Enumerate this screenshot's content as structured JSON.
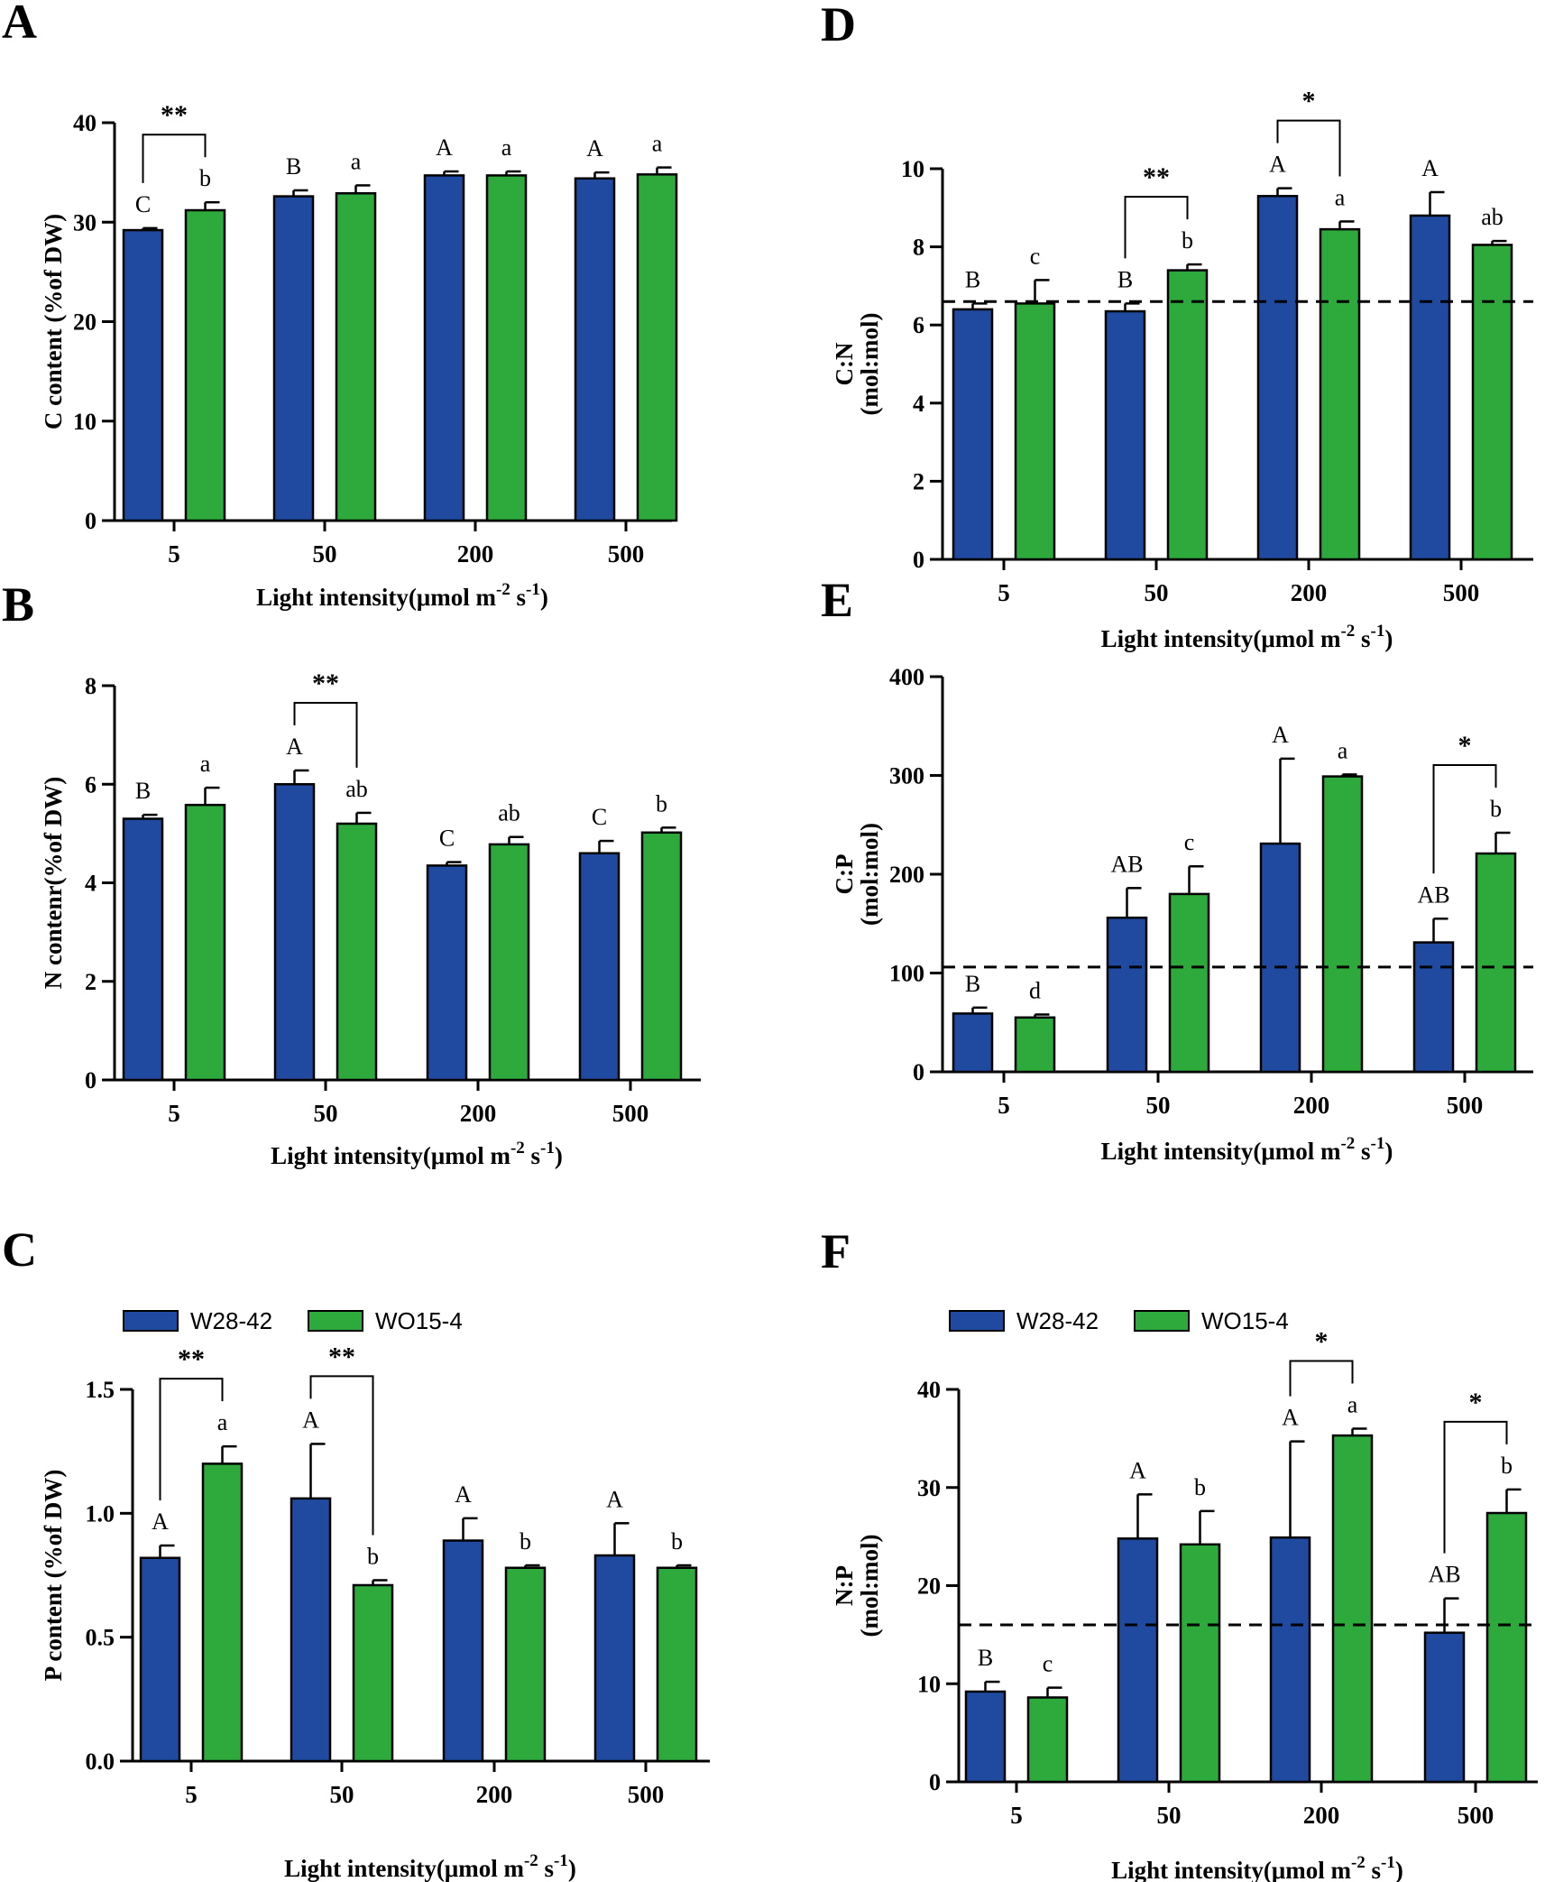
{
  "figure": {
    "legend": [
      {
        "name": "W28-42",
        "color": "#1f4aa0"
      },
      {
        "name": "WO15-4",
        "color": "#2eaa3c"
      }
    ]
  },
  "chart_data": [
    {
      "panel": "A",
      "type": "bar",
      "categories": [
        "5",
        "50",
        "200",
        "500"
      ],
      "series": [
        {
          "name": "W28-42",
          "values": [
            29.2,
            32.6,
            34.7,
            34.4
          ],
          "errors": [
            0.2,
            0.6,
            0.4,
            0.6
          ]
        },
        {
          "name": "WO15-4",
          "values": [
            31.2,
            32.9,
            34.7,
            34.8
          ],
          "errors": [
            0.8,
            0.8,
            0.4,
            0.7
          ]
        }
      ],
      "letters": [
        [
          "C",
          "B",
          "A",
          "A"
        ],
        [
          "b",
          "a",
          "a",
          "a"
        ]
      ],
      "significance": [
        {
          "category": "5",
          "label": "**"
        }
      ],
      "ylabel": "C content (%of DW)",
      "xlabel": "Light intensity(μmol m",
      "xlabel_sup": "-2",
      "xlabel_tail": " s",
      "xlabel_sup2": "-1",
      "xlabel_end": ")",
      "ylim": [
        0,
        40
      ],
      "yticks": [
        "0",
        "10",
        "20",
        "30",
        "40"
      ],
      "ytick_values": [
        0,
        10,
        20,
        30,
        40
      ],
      "reference_line": null,
      "legend": false
    },
    {
      "panel": "B",
      "type": "bar",
      "categories": [
        "5",
        "50",
        "200",
        "500"
      ],
      "series": [
        {
          "name": "W28-42",
          "values": [
            5.3,
            6.0,
            4.35,
            4.6
          ],
          "errors": [
            0.08,
            0.28,
            0.07,
            0.25
          ]
        },
        {
          "name": "WO15-4",
          "values": [
            5.58,
            5.2,
            4.78,
            5.02
          ],
          "errors": [
            0.35,
            0.22,
            0.15,
            0.1
          ]
        }
      ],
      "letters": [
        [
          "B",
          "A",
          "C",
          "C"
        ],
        [
          "a",
          "ab",
          "ab",
          "b"
        ]
      ],
      "significance": [
        {
          "category": "50",
          "label": "**"
        }
      ],
      "ylabel": "N contenr(%of DW)",
      "xlabel": "Light intensity(μmol m",
      "xlabel_sup": "-2",
      "xlabel_tail": " s",
      "xlabel_sup2": "-1",
      "xlabel_end": ")",
      "ylim": [
        0,
        8
      ],
      "yticks": [
        "0",
        "2",
        "4",
        "6",
        "8"
      ],
      "ytick_values": [
        0,
        2,
        4,
        6,
        8
      ],
      "reference_line": null,
      "legend": false
    },
    {
      "panel": "C",
      "type": "bar",
      "categories": [
        "5",
        "50",
        "200",
        "500"
      ],
      "series": [
        {
          "name": "W28-42",
          "values": [
            0.82,
            1.06,
            0.89,
            0.83
          ],
          "errors": [
            0.05,
            0.22,
            0.09,
            0.13
          ]
        },
        {
          "name": "WO15-4",
          "values": [
            1.2,
            0.71,
            0.78,
            0.78
          ],
          "errors": [
            0.07,
            0.02,
            0.01,
            0.01
          ]
        }
      ],
      "letters": [
        [
          "A",
          "A",
          "A",
          "A"
        ],
        [
          "a",
          "b",
          "b",
          "b"
        ]
      ],
      "significance": [
        {
          "category": "5",
          "label": "**"
        },
        {
          "category": "50",
          "label": "**"
        }
      ],
      "ylabel": "P content (%of DW)",
      "xlabel": "Light intensity(μmol m",
      "xlabel_sup": "-2",
      "xlabel_tail": " s",
      "xlabel_sup2": "-1",
      "xlabel_end": ")",
      "ylim": [
        0,
        1.5
      ],
      "yticks": [
        "0.0",
        "0.5",
        "1.0",
        "1.5"
      ],
      "ytick_values": [
        0,
        0.5,
        1.0,
        1.5
      ],
      "reference_line": null,
      "legend": true
    },
    {
      "panel": "D",
      "type": "bar",
      "categories": [
        "5",
        "50",
        "200",
        "500"
      ],
      "series": [
        {
          "name": "W28-42",
          "values": [
            6.4,
            6.35,
            9.3,
            8.8
          ],
          "errors": [
            0.15,
            0.2,
            0.2,
            0.6
          ]
        },
        {
          "name": "WO15-4",
          "values": [
            6.55,
            7.4,
            8.45,
            8.05
          ],
          "errors": [
            0.6,
            0.15,
            0.2,
            0.1
          ]
        }
      ],
      "letters": [
        [
          "B",
          "B",
          "A",
          "A"
        ],
        [
          "c",
          "b",
          "a",
          "ab"
        ]
      ],
      "significance": [
        {
          "category": "50",
          "label": "**"
        },
        {
          "category": "200",
          "label": "*"
        }
      ],
      "ylabel": "C:N",
      "ylabel2": "(mol:mol)",
      "xlabel": "Light intensity(μmol m",
      "xlabel_sup": "-2",
      "xlabel_tail": " s",
      "xlabel_sup2": "-1",
      "xlabel_end": ")",
      "ylim": [
        0,
        10
      ],
      "yticks": [
        "0",
        "2",
        "4",
        "6",
        "8",
        "10"
      ],
      "ytick_values": [
        0,
        2,
        4,
        6,
        8,
        10
      ],
      "reference_line": 6.6,
      "legend": false
    },
    {
      "panel": "E",
      "type": "bar",
      "categories": [
        "5",
        "50",
        "200",
        "500"
      ],
      "series": [
        {
          "name": "W28-42",
          "values": [
            59,
            156,
            231,
            131
          ],
          "errors": [
            6,
            30,
            86,
            24
          ]
        },
        {
          "name": "WO15-4",
          "values": [
            55,
            180,
            299,
            221
          ],
          "errors": [
            3,
            28,
            2,
            21
          ]
        }
      ],
      "letters": [
        [
          "B",
          "AB",
          "A",
          "AB"
        ],
        [
          "d",
          "c",
          "a",
          "b"
        ]
      ],
      "significance": [
        {
          "category": "500",
          "label": "*"
        }
      ],
      "ylabel": "C:P",
      "ylabel2": "(mol:mol)",
      "xlabel": "Light intensity(μmol m",
      "xlabel_sup": "-2",
      "xlabel_tail": " s",
      "xlabel_sup2": "-1",
      "xlabel_end": ")",
      "ylim": [
        0,
        400
      ],
      "yticks": [
        "0",
        "100",
        "200",
        "300",
        "400"
      ],
      "ytick_values": [
        0,
        100,
        200,
        300,
        400
      ],
      "reference_line": 106,
      "legend": false
    },
    {
      "panel": "F",
      "type": "bar",
      "categories": [
        "5",
        "50",
        "200",
        "500"
      ],
      "series": [
        {
          "name": "W28-42",
          "values": [
            9.2,
            24.8,
            24.9,
            15.2
          ],
          "errors": [
            1.0,
            4.5,
            9.8,
            3.5
          ]
        },
        {
          "name": "WO15-4",
          "values": [
            8.6,
            24.2,
            35.3,
            27.4
          ],
          "errors": [
            1.0,
            3.4,
            0.7,
            2.4
          ]
        }
      ],
      "letters": [
        [
          "B",
          "A",
          "A",
          "AB"
        ],
        [
          "c",
          "b",
          "a",
          "b"
        ]
      ],
      "significance": [
        {
          "category": "200",
          "label": "*"
        },
        {
          "category": "500",
          "label": "*"
        }
      ],
      "ylabel": "N:P",
      "ylabel2": "(mol:mol)",
      "xlabel": "Light intensity(μmol m",
      "xlabel_sup": "-2",
      "xlabel_tail": " s",
      "xlabel_sup2": "-1",
      "xlabel_end": ")",
      "ylim": [
        0,
        40
      ],
      "yticks": [
        "0",
        "10",
        "20",
        "30",
        "40"
      ],
      "ytick_values": [
        0,
        10,
        20,
        30,
        40
      ],
      "reference_line": 16,
      "legend": true
    }
  ]
}
